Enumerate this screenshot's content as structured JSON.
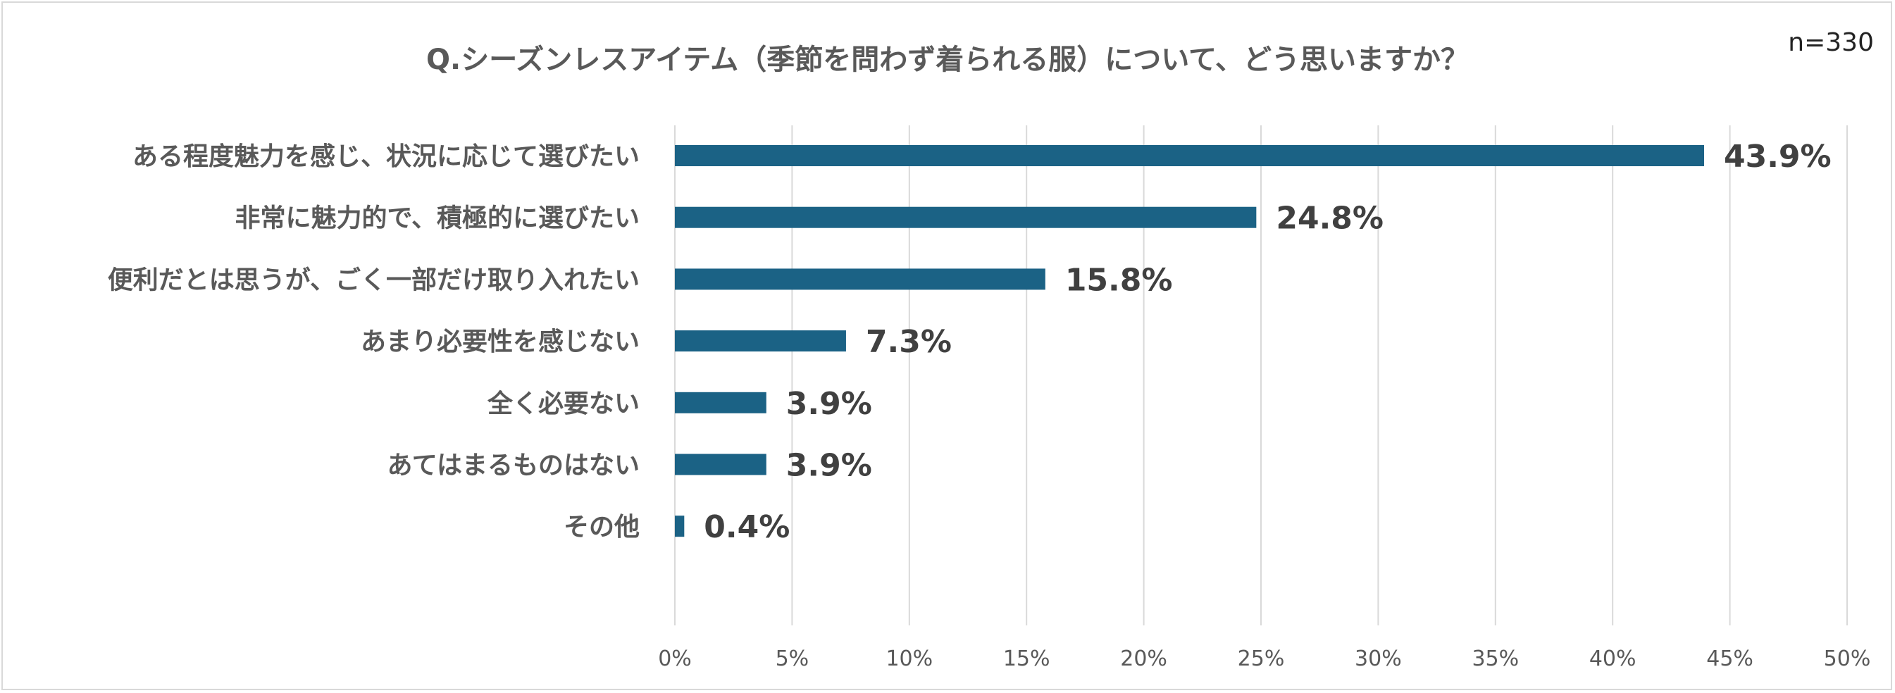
{
  "title": "Q.シーズンレスアイテム（季節を問わず着られる服）について、どう思いますか？",
  "sample_size": "n=330",
  "chart_data": {
    "type": "bar",
    "orientation": "horizontal",
    "categories": [
      "ある程度魅力を感じ、状況に応じて選びたい",
      "非常に魅力的で、積極的に選びたい",
      "便利だとは思うが、ごく一部だけ取り入れたい",
      "あまり必要性を感じない",
      "全く必要ない",
      "あてはまるものはない",
      "その他"
    ],
    "values": [
      43.9,
      24.8,
      15.8,
      7.3,
      3.9,
      3.9,
      0.4
    ],
    "value_labels": [
      "43.9%",
      "24.8%",
      "15.8%",
      "7.3%",
      "3.9%",
      "3.9%",
      "0.4%"
    ],
    "xlim": [
      0,
      50
    ],
    "x_ticks": [
      "0%",
      "5%",
      "10%",
      "15%",
      "20%",
      "25%",
      "30%",
      "35%",
      "40%",
      "45%",
      "50%"
    ],
    "x_tick_values": [
      0,
      5,
      10,
      15,
      20,
      25,
      30,
      35,
      40,
      45,
      50
    ],
    "grid": "vertical",
    "bar_color": "#1b6285",
    "grid_color": "#d9d9d9"
  }
}
